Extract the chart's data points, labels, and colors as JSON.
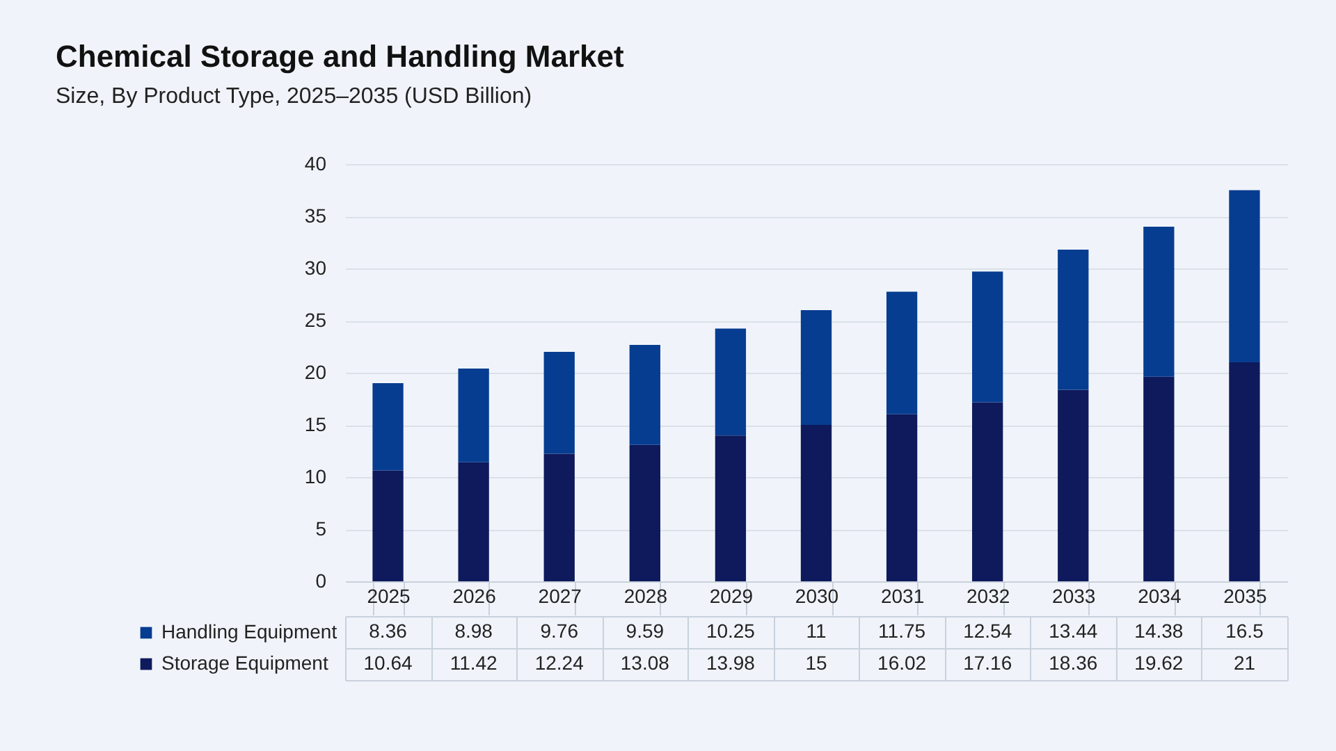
{
  "chart_data": {
    "type": "bar",
    "title": "Chemical Storage and Handling Market",
    "subtitle": "Size, By Product Type, 2025–2035 (USD Billion)",
    "categories": [
      "2025",
      "2026",
      "2027",
      "2028",
      "2029",
      "2030",
      "2031",
      "2032",
      "2033",
      "2034",
      "2035"
    ],
    "stacked": true,
    "series": [
      {
        "name": "Storage Equipment",
        "color": "#0e1a5c",
        "values": [
          10.64,
          11.42,
          12.24,
          13.08,
          13.98,
          15,
          16.02,
          17.16,
          18.36,
          19.62,
          21
        ]
      },
      {
        "name": "Handling Equipment",
        "color": "#073d91",
        "values": [
          8.36,
          8.98,
          9.76,
          9.59,
          10.25,
          11,
          11.75,
          12.54,
          13.44,
          14.38,
          16.5
        ]
      }
    ],
    "ylim": [
      0,
      40
    ],
    "yticks": [
      0,
      5,
      10,
      15,
      20,
      25,
      30,
      35,
      40
    ],
    "grid": "y",
    "legend": "bottom",
    "data_labels": true
  }
}
